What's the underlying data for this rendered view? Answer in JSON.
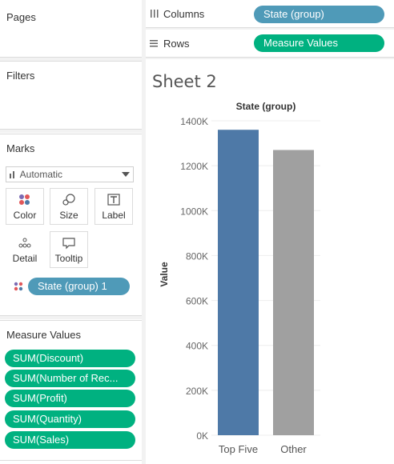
{
  "left_pane": {
    "pages": {
      "title": "Pages"
    },
    "filters": {
      "title": "Filters"
    },
    "marks": {
      "title": "Marks",
      "mark_type": "Automatic",
      "mark_type_icon": "bar-chart-icon",
      "buttons": [
        {
          "label": "Color",
          "icon": "color-dots-icon"
        },
        {
          "label": "Size",
          "icon": "size-circles-icon"
        },
        {
          "label": "Label",
          "icon": "text-t-icon"
        },
        {
          "label": "Detail",
          "icon": "detail-dots-icon"
        },
        {
          "label": "Tooltip",
          "icon": "speech-bubble-icon"
        }
      ],
      "color_pill": {
        "label": "State (group) 1",
        "icon": "color-dots-icon"
      }
    },
    "measure_values": {
      "title": "Measure Values",
      "pills": [
        "SUM(Discount)",
        "SUM(Number of Rec...",
        "SUM(Profit)",
        "SUM(Quantity)",
        "SUM(Sales)"
      ]
    }
  },
  "shelves": {
    "columns": {
      "label": "Columns",
      "icon": "columns-icon",
      "pill": "State (group)"
    },
    "rows": {
      "label": "Rows",
      "icon": "rows-icon",
      "pill": "Measure Values"
    }
  },
  "sheet": {
    "title": "Sheet 2"
  },
  "colors": {
    "green_pill": "#00b180",
    "blue_pill": "#4f9ab8",
    "bar_top_five": "#4e79a7",
    "bar_other": "#a0a0a0"
  },
  "chart_data": {
    "type": "bar",
    "title": "State (group)",
    "xlabel": "",
    "ylabel": "Value",
    "categories": [
      "Top Five",
      "Other"
    ],
    "values": [
      1360000,
      1270000
    ],
    "colors": [
      "#4e79a7",
      "#a0a0a0"
    ],
    "ylim": [
      0,
      1400000
    ],
    "yticks": [
      0,
      200000,
      400000,
      600000,
      800000,
      1000000,
      1200000,
      1400000
    ],
    "ytick_labels": [
      "0K",
      "200K",
      "400K",
      "600K",
      "800K",
      "1000K",
      "1200K",
      "1400K"
    ],
    "grid": true
  }
}
